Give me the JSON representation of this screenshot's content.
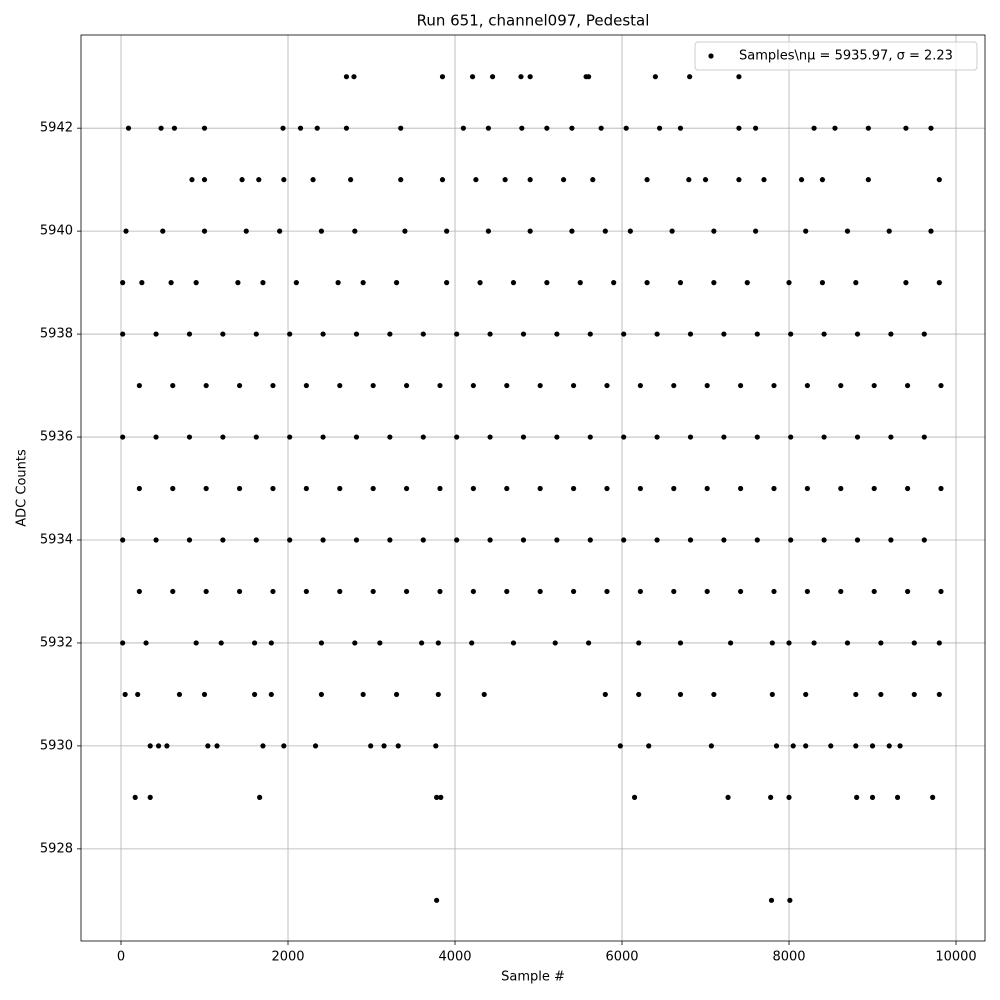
{
  "chart_data": {
    "type": "scatter",
    "title": "Run 651, channel097, Pedestal",
    "xlabel": "Sample #",
    "ylabel": "ADC Counts",
    "xlim": [
      -479,
      10347
    ],
    "ylim": [
      5926.21,
      5943.81
    ],
    "xticks": [
      0,
      2000,
      4000,
      6000,
      8000,
      10000
    ],
    "yticks": [
      5928,
      5930,
      5932,
      5934,
      5936,
      5938,
      5940,
      5942
    ],
    "grid": true,
    "legend": "upper right",
    "series": [
      {
        "name": "Samples\\nμ = 5935.97, σ = 2.23",
        "color": "#000000",
        "x": [
          20,
          420,
          820,
          1220,
          1620,
          2020,
          2420,
          2820,
          3220,
          3620,
          4020,
          4420,
          4820,
          5220,
          5620,
          6020,
          6420,
          6820,
          7220,
          7620,
          8020,
          8420,
          8820,
          9220,
          9620,
          220,
          620,
          1020,
          1420,
          1820,
          2220,
          2620,
          3020,
          3420,
          3820,
          4220,
          4620,
          5020,
          5420,
          5820,
          6220,
          6620,
          7020,
          7420,
          7820,
          8220,
          8620,
          9020,
          9420,
          9820,
          20,
          420,
          820,
          1220,
          1620,
          2020,
          2420,
          2820,
          3220,
          3620,
          4020,
          4420,
          4820,
          5220,
          5620,
          6020,
          6420,
          6820,
          7220,
          7620,
          8020,
          8420,
          8820,
          9220,
          9620,
          220,
          620,
          1020,
          1420,
          1820,
          2220,
          2620,
          3020,
          3420,
          3820,
          4220,
          4620,
          5020,
          5420,
          5820,
          6220,
          6620,
          7020,
          7420,
          7820,
          8220,
          8620,
          9020,
          9420,
          9820,
          20,
          420,
          820,
          1220,
          1620,
          2020,
          2420,
          2820,
          3220,
          3620,
          4020,
          4420,
          4820,
          5220,
          5620,
          6020,
          6420,
          6820,
          7220,
          7620,
          8020,
          8420,
          8820,
          9220,
          9620,
          220,
          620,
          1020,
          1420,
          1820,
          2220,
          2620,
          3020,
          3420,
          3820,
          4220,
          4620,
          5020,
          5420,
          5820,
          6220,
          6620,
          7020,
          7420,
          7820,
          8220,
          8620,
          9020,
          9420,
          9820,
          20,
          250,
          600,
          900,
          1400,
          1700,
          2100,
          2600,
          2900,
          3300,
          3900,
          4300,
          4700,
          5100,
          5500,
          5900,
          6300,
          6700,
          7100,
          7500,
          8000,
          8400,
          8800,
          9400,
          9800,
          20,
          300,
          900,
          1200,
          1600,
          1800,
          2400,
          2800,
          3100,
          3600,
          3800,
          4200,
          4700,
          5200,
          5600,
          6200,
          6700,
          7300,
          7800,
          8000,
          8300,
          8700,
          9100,
          9500,
          9800,
          60,
          500,
          1000,
          1500,
          1900,
          2400,
          2800,
          3400,
          3900,
          4400,
          4900,
          5400,
          5800,
          6100,
          6600,
          7100,
          7600,
          8200,
          8700,
          9200,
          9700,
          50,
          200,
          700,
          1000,
          1600,
          1800,
          2400,
          2900,
          3300,
          3800,
          4350,
          5800,
          6200,
          6700,
          7100,
          7800,
          8200,
          8800,
          9100,
          9500,
          9800,
          850,
          1000,
          1450,
          1650,
          1950,
          2300,
          2750,
          3350,
          3850,
          4250,
          4600,
          4900,
          5300,
          5650,
          6300,
          6800,
          7000,
          7400,
          7700,
          8150,
          8400,
          8950,
          9800,
          90,
          480,
          640,
          1000,
          1940,
          2150,
          2350,
          2700,
          3350,
          4100,
          4400,
          4800,
          5100,
          5400,
          5750,
          6050,
          6450,
          6700,
          7400,
          7600,
          8300,
          8550,
          8950,
          9400,
          9700,
          350,
          450,
          550,
          1040,
          1150,
          1700,
          1950,
          2330,
          2990,
          3150,
          3320,
          3770,
          5980,
          6320,
          7070,
          7850,
          8050,
          8200,
          8500,
          8800,
          9000,
          9200,
          9330,
          170,
          350,
          1660,
          3780,
          3830,
          6150,
          7270,
          7780,
          8000,
          8810,
          9000,
          9300,
          9720,
          2700,
          2790,
          3850,
          4210,
          4450,
          4790,
          4900,
          5570,
          5600,
          6400,
          6810,
          7400,
          3780,
          7790,
          8010
        ],
        "values": [
          5938,
          5938,
          5938,
          5938,
          5938,
          5938,
          5938,
          5938,
          5938,
          5938,
          5938,
          5938,
          5938,
          5938,
          5938,
          5938,
          5938,
          5938,
          5938,
          5938,
          5938,
          5938,
          5938,
          5938,
          5938,
          5937,
          5937,
          5937,
          5937,
          5937,
          5937,
          5937,
          5937,
          5937,
          5937,
          5937,
          5937,
          5937,
          5937,
          5937,
          5937,
          5937,
          5937,
          5937,
          5937,
          5937,
          5937,
          5937,
          5937,
          5937,
          5936,
          5936,
          5936,
          5936,
          5936,
          5936,
          5936,
          5936,
          5936,
          5936,
          5936,
          5936,
          5936,
          5936,
          5936,
          5936,
          5936,
          5936,
          5936,
          5936,
          5936,
          5936,
          5936,
          5936,
          5936,
          5935,
          5935,
          5935,
          5935,
          5935,
          5935,
          5935,
          5935,
          5935,
          5935,
          5935,
          5935,
          5935,
          5935,
          5935,
          5935,
          5935,
          5935,
          5935,
          5935,
          5935,
          5935,
          5935,
          5935,
          5935,
          5934,
          5934,
          5934,
          5934,
          5934,
          5934,
          5934,
          5934,
          5934,
          5934,
          5934,
          5934,
          5934,
          5934,
          5934,
          5934,
          5934,
          5934,
          5934,
          5934,
          5934,
          5934,
          5934,
          5934,
          5934,
          5933,
          5933,
          5933,
          5933,
          5933,
          5933,
          5933,
          5933,
          5933,
          5933,
          5933,
          5933,
          5933,
          5933,
          5933,
          5933,
          5933,
          5933,
          5933,
          5933,
          5933,
          5933,
          5933,
          5933,
          5933,
          5939,
          5939,
          5939,
          5939,
          5939,
          5939,
          5939,
          5939,
          5939,
          5939,
          5939,
          5939,
          5939,
          5939,
          5939,
          5939,
          5939,
          5939,
          5939,
          5939,
          5939,
          5939,
          5939,
          5939,
          5939,
          5932,
          5932,
          5932,
          5932,
          5932,
          5932,
          5932,
          5932,
          5932,
          5932,
          5932,
          5932,
          5932,
          5932,
          5932,
          5932,
          5932,
          5932,
          5932,
          5932,
          5932,
          5932,
          5932,
          5932,
          5932,
          5940,
          5940,
          5940,
          5940,
          5940,
          5940,
          5940,
          5940,
          5940,
          5940,
          5940,
          5940,
          5940,
          5940,
          5940,
          5940,
          5940,
          5940,
          5940,
          5940,
          5940,
          5931,
          5931,
          5931,
          5931,
          5931,
          5931,
          5931,
          5931,
          5931,
          5931,
          5931,
          5931,
          5931,
          5931,
          5931,
          5931,
          5931,
          5931,
          5931,
          5931,
          5931,
          5941,
          5941,
          5941,
          5941,
          5941,
          5941,
          5941,
          5941,
          5941,
          5941,
          5941,
          5941,
          5941,
          5941,
          5941,
          5941,
          5941,
          5941,
          5941,
          5941,
          5941,
          5941,
          5941,
          5942,
          5942,
          5942,
          5942,
          5942,
          5942,
          5942,
          5942,
          5942,
          5942,
          5942,
          5942,
          5942,
          5942,
          5942,
          5942,
          5942,
          5942,
          5942,
          5942,
          5942,
          5942,
          5942,
          5942,
          5942,
          5930,
          5930,
          5930,
          5930,
          5930,
          5930,
          5930,
          5930,
          5930,
          5930,
          5930,
          5930,
          5930,
          5930,
          5930,
          5930,
          5930,
          5930,
          5930,
          5930,
          5930,
          5930,
          5930,
          5929,
          5929,
          5929,
          5929,
          5929,
          5929,
          5929,
          5929,
          5929,
          5929,
          5929,
          5929,
          5929,
          5943,
          5943,
          5943,
          5943,
          5943,
          5943,
          5943,
          5943,
          5943,
          5943,
          5943,
          5943,
          5927,
          5927,
          5927
        ]
      }
    ]
  }
}
